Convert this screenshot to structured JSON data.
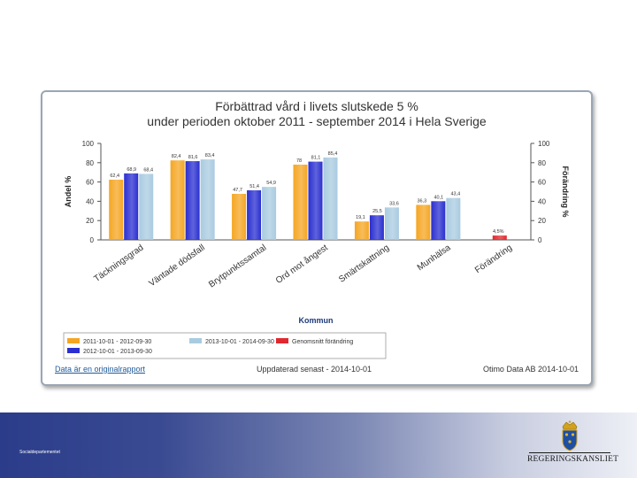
{
  "title_line1": "Förbättrad vård i livets slutskede 5 %",
  "title_line2": "under perioden oktober 2011 - september 2014 i Hela Sverige",
  "footer": {
    "link": "Data är en originalrapport",
    "updated": "Uppdaterad senast - 2014-10-01",
    "source": "Otimo Data AB 2014-10-01"
  },
  "department": "Socialdepartementet",
  "logo_text": "REGERINGSKANSLIET",
  "colors": {
    "series1": "#f5a623",
    "series2": "#2a2fd0",
    "series3": "#a9cbe0",
    "change": "#e0282e"
  },
  "chart_data": {
    "type": "bar",
    "categories": [
      "Täckningsgrad",
      "Väntade dödsfall",
      "Brytpunktssamtal",
      "Ord mot ångest",
      "Smärtskattning",
      "Munhälsa",
      "Förändring"
    ],
    "series": [
      {
        "name": "2011-10-01 - 2012-09-30",
        "values": [
          62.4,
          82.4,
          47.7,
          78,
          19.1,
          36.3,
          null
        ],
        "labels": [
          "62,4",
          "82,4",
          "47,7",
          "78",
          "19,1",
          "36,3",
          ""
        ]
      },
      {
        "name": "2012-10-01 - 2013-09-30",
        "values": [
          68.9,
          81.6,
          51.4,
          81.1,
          25.5,
          40.1,
          null
        ],
        "labels": [
          "68,9",
          "81,6",
          "51,4",
          "81,1",
          "25,5",
          "40,1",
          ""
        ]
      },
      {
        "name": "2013-10-01 - 2014-09-30",
        "values": [
          68.4,
          83.4,
          54.9,
          85.4,
          33.6,
          43.4,
          null
        ],
        "labels": [
          "68,4",
          "83,4",
          "54,9",
          "85,4",
          "33,6",
          "43,4",
          ""
        ]
      },
      {
        "name": "Genomsnitt förändring",
        "values": [
          null,
          null,
          null,
          null,
          null,
          null,
          4.5
        ],
        "labels": [
          "",
          "",
          "",
          "",
          "",
          "",
          "4,5%"
        ]
      }
    ],
    "ylabel": "Andel %",
    "y2label": "Förändring %",
    "xlabel": "Kommun",
    "ylim": [
      0,
      100
    ],
    "yticks": [
      "0",
      "20",
      "40",
      "60",
      "80",
      "100"
    ],
    "legend_position": "bottom-left"
  }
}
